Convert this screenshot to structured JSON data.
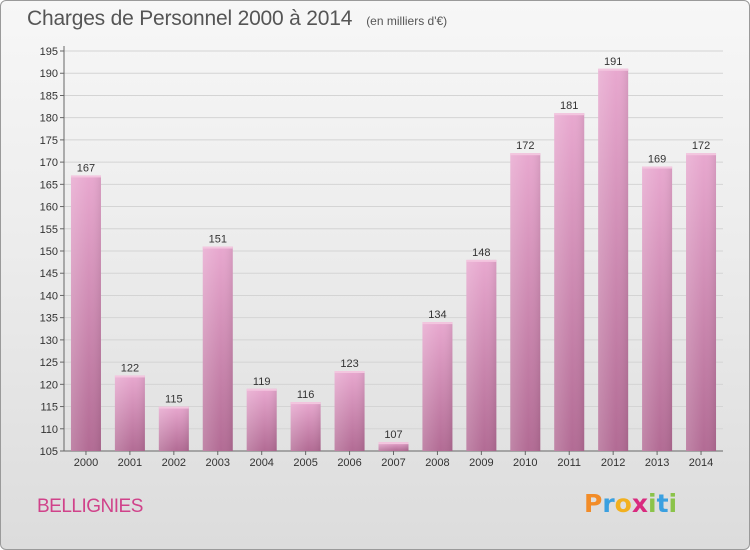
{
  "header": {
    "title": "Charges de Personnel 2000 à 2014",
    "subtitle": "(en milliers d'€)"
  },
  "commune": "BELLIGNIES",
  "logo": {
    "letters": [
      "P",
      "r",
      "o",
      "x",
      "i",
      "t",
      "i"
    ],
    "colors": [
      "#f28c28",
      "#3aa0e0",
      "#f2b01e",
      "#d92b7f",
      "#8bc34a",
      "#3aa0e0",
      "#8bc34a"
    ]
  },
  "colors": {
    "bar_top": "#e8a8cf",
    "bar_bottom": "#b26b94",
    "grid": "#d4d4d4",
    "axis": "#666666"
  },
  "chart_data": {
    "type": "bar",
    "title": "Charges de Personnel 2000 à 2014",
    "subtitle": "(en milliers d'€)",
    "categories": [
      "2000",
      "2001",
      "2002",
      "2003",
      "2004",
      "2005",
      "2006",
      "2007",
      "2008",
      "2009",
      "2010",
      "2011",
      "2012",
      "2013",
      "2014"
    ],
    "values": [
      167,
      122,
      115,
      151,
      119,
      116,
      123,
      107,
      134,
      148,
      172,
      181,
      191,
      169,
      172
    ],
    "ylim": [
      105,
      195
    ],
    "yticks": [
      105,
      110,
      115,
      120,
      125,
      130,
      135,
      140,
      145,
      150,
      155,
      160,
      165,
      170,
      175,
      180,
      185,
      190,
      195
    ],
    "grid": true,
    "data_labels": true
  }
}
